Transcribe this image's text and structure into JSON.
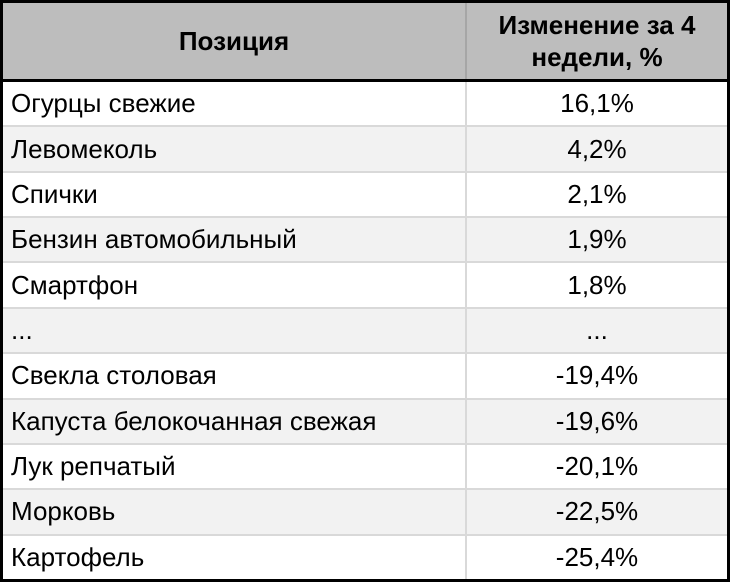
{
  "table": {
    "columns": [
      {
        "label": "Позиция"
      },
      {
        "label": "Изменение за 4 недели, %"
      }
    ],
    "rows": [
      {
        "position": "Огурцы свежие",
        "change": "16,1%"
      },
      {
        "position": "Левомеколь",
        "change": "4,2%"
      },
      {
        "position": "Спички",
        "change": "2,1%"
      },
      {
        "position": "Бензин автомобильный",
        "change": "1,9%"
      },
      {
        "position": "Смартфон",
        "change": "1,8%"
      },
      {
        "position": "...",
        "change": "..."
      },
      {
        "position": "Свекла столовая",
        "change": "-19,4%"
      },
      {
        "position": "Капуста белокочанная свежая",
        "change": "-19,6%"
      },
      {
        "position": "Лук репчатый",
        "change": "-20,1%"
      },
      {
        "position": "Морковь",
        "change": "-22,5%"
      },
      {
        "position": "Картофель",
        "change": "-25,4%"
      }
    ]
  },
  "chart_data": {
    "type": "table",
    "title": "",
    "columns": [
      "Позиция",
      "Изменение за 4 недели, %"
    ],
    "rows": [
      [
        "Огурцы свежие",
        "16,1%"
      ],
      [
        "Левомеколь",
        "4,2%"
      ],
      [
        "Спички",
        "2,1%"
      ],
      [
        "Бензин автомобильный",
        "1,9%"
      ],
      [
        "Смартфон",
        "1,8%"
      ],
      [
        "...",
        "..."
      ],
      [
        "Свекла столовая",
        "-19,4%"
      ],
      [
        "Капуста белокочанная свежая",
        "-19,6%"
      ],
      [
        "Лук репчатый",
        "-20,1%"
      ],
      [
        "Морковь",
        "-22,5%"
      ],
      [
        "Картофель",
        "-25,4%"
      ]
    ],
    "values_numeric_percent": [
      16.1,
      4.2,
      2.1,
      1.9,
      1.8,
      null,
      -19.4,
      -19.6,
      -20.1,
      -22.5,
      -25.4
    ]
  },
  "colors": {
    "header_bg": "#bdbdbd",
    "row_bg": "#ffffff",
    "row_alt_bg": "#f2f2f2",
    "outer_border": "#000000",
    "row_divider": "#d9d9d9",
    "header_divider": "#a6a6a6",
    "text": "#000000"
  }
}
